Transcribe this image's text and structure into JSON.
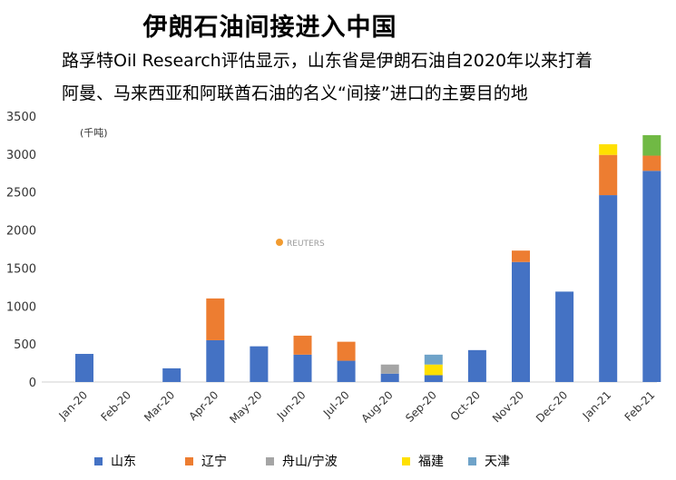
{
  "title": "伊朗石油间接进入中国",
  "subtitle_line1": "路孚特Oil Research评估显示，山东省是伊朗石油自2020年以来打着",
  "subtitle_line2": "阿曼、马来西亚和阿联酋石油的名义“间接”进口的主要目的地",
  "unit_label": "(千吨)",
  "watermark": "REUTERS",
  "chart_data": {
    "type": "bar",
    "stacked": true,
    "categories": [
      "Jan-20",
      "Feb-20",
      "Mar-20",
      "Apr-20",
      "May-20",
      "Jun-20",
      "Jul-20",
      "Aug-20",
      "Sep-20",
      "Oct-20",
      "Nov-20",
      "Dec-20",
      "Jan-21",
      "Feb-21"
    ],
    "series": [
      {
        "name": "山东",
        "color": "#4472C4",
        "values": [
          370,
          0,
          180,
          550,
          470,
          360,
          280,
          110,
          90,
          420,
          1580,
          1190,
          2460,
          2780
        ]
      },
      {
        "name": "辽宁",
        "color": "#ED7D31",
        "values": [
          0,
          0,
          0,
          550,
          0,
          250,
          250,
          0,
          0,
          0,
          150,
          0,
          530,
          200
        ]
      },
      {
        "name": "舟山/宁波",
        "color": "#A5A5A5",
        "values": [
          0,
          0,
          0,
          0,
          0,
          0,
          0,
          120,
          0,
          0,
          0,
          0,
          0,
          0
        ]
      },
      {
        "name": "福建",
        "color": "#FFE000",
        "values": [
          0,
          0,
          0,
          0,
          0,
          0,
          0,
          0,
          140,
          0,
          0,
          0,
          140,
          0
        ]
      },
      {
        "name": "天津",
        "color": "#6FA3C9",
        "values": [
          0,
          0,
          0,
          0,
          0,
          0,
          0,
          0,
          130,
          0,
          0,
          0,
          0,
          0
        ]
      },
      {
        "name": "",
        "color": "#70B944",
        "values": [
          0,
          0,
          0,
          0,
          0,
          0,
          0,
          0,
          0,
          0,
          0,
          0,
          0,
          270
        ]
      }
    ],
    "ylim": [
      0,
      3500
    ],
    "yticks": [
      0,
      500,
      1000,
      1500,
      2000,
      2500,
      3000,
      3500
    ],
    "grid": false,
    "legend_position": "bottom"
  }
}
